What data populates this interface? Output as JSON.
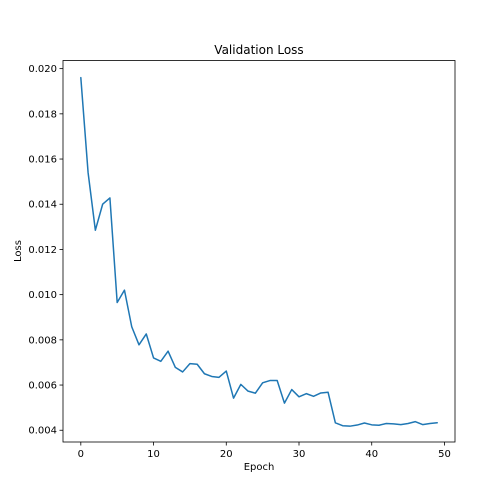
{
  "chart_data": {
    "type": "line",
    "title": "Validation Loss",
    "xlabel": "Epoch",
    "ylabel": "Loss",
    "xlim": [
      -2.45,
      51.45
    ],
    "ylim": [
      0.00348,
      0.02036
    ],
    "xticks": [
      0,
      10,
      20,
      30,
      40,
      50
    ],
    "yticks": [
      0.004,
      0.006,
      0.008,
      0.01,
      0.012,
      0.014,
      0.016,
      0.018,
      0.02
    ],
    "ytick_labels": [
      "0.004",
      "0.006",
      "0.008",
      "0.010",
      "0.012",
      "0.014",
      "0.016",
      "0.018",
      "0.020"
    ],
    "grid": false,
    "line_color": "#1f77b4",
    "series": [
      {
        "x": [
          0,
          1,
          2,
          3,
          4,
          5,
          6,
          7,
          8,
          9,
          10,
          11,
          12,
          13,
          14,
          15,
          16,
          17,
          18,
          19,
          20,
          21,
          22,
          23,
          24,
          25,
          26,
          27,
          28,
          29,
          30,
          31,
          32,
          33,
          34,
          35,
          36,
          37,
          38,
          39,
          40,
          41,
          42,
          43,
          44,
          45,
          46,
          47,
          48,
          49
        ],
        "values": [
          0.0196,
          0.0154,
          0.01285,
          0.014,
          0.01428,
          0.00965,
          0.0102,
          0.00858,
          0.00778,
          0.00826,
          0.0072,
          0.00705,
          0.0075,
          0.00678,
          0.00658,
          0.00695,
          0.00692,
          0.0065,
          0.00638,
          0.00634,
          0.00662,
          0.00542,
          0.00603,
          0.00573,
          0.00564,
          0.0061,
          0.0062,
          0.0062,
          0.0052,
          0.0058,
          0.00548,
          0.00562,
          0.0055,
          0.00565,
          0.00568,
          0.00433,
          0.0042,
          0.00418,
          0.00423,
          0.00432,
          0.00424,
          0.00422,
          0.0043,
          0.00428,
          0.00425,
          0.0043,
          0.00438,
          0.00425,
          0.0043,
          0.00433
        ]
      }
    ]
  }
}
